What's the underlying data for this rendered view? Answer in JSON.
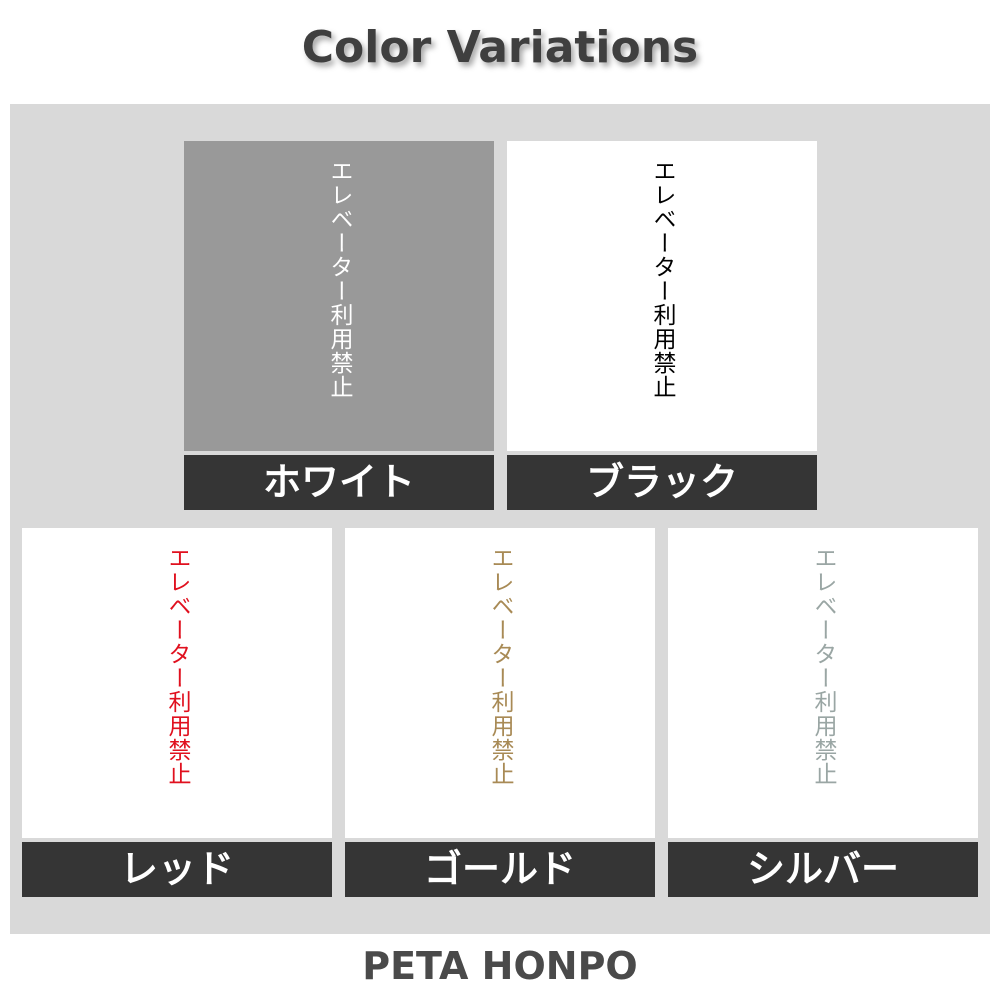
{
  "title": "Color Variations",
  "sign_text": "エレベーター利用禁止",
  "variants": [
    {
      "label": "ホワイト",
      "text_color": "#ffffff",
      "background": "#999999"
    },
    {
      "label": "ブラック",
      "text_color": "#000000",
      "background": "#ffffff"
    },
    {
      "label": "レッド",
      "text_color": "#e0101e",
      "background": "#ffffff"
    },
    {
      "label": "ゴールド",
      "text_color": "#a88a55",
      "background": "#ffffff"
    },
    {
      "label": "シルバー",
      "text_color": "#9aa6a4",
      "background": "#ffffff"
    }
  ],
  "brand": "PETA HONPO"
}
